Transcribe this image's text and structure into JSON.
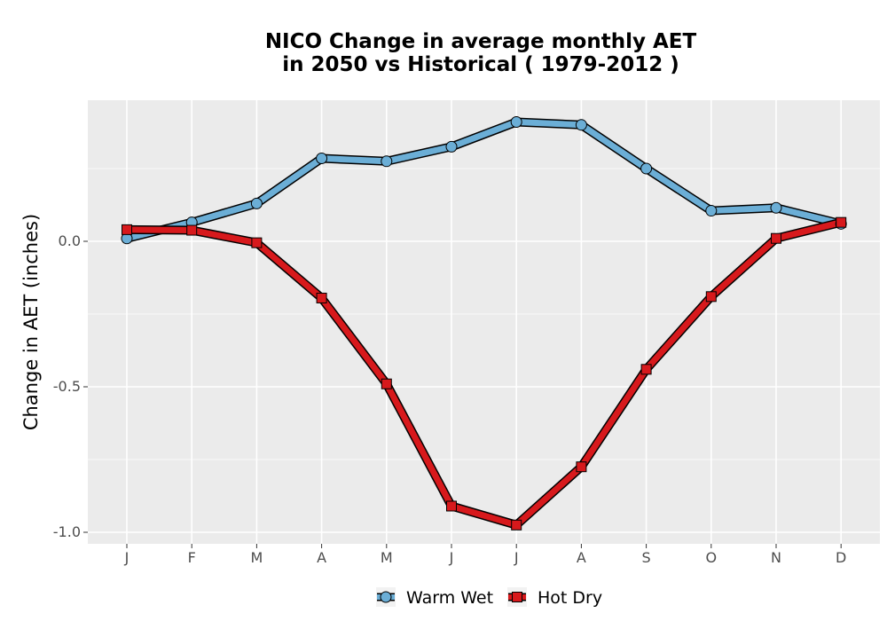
{
  "chart_data": {
    "type": "line",
    "title_line1": "NICO  Change in average monthly AET",
    "title_line2": "in 2050 vs Historical ( 1979-2012 )",
    "xlabel": "",
    "ylabel": "Change in AET (inches)",
    "categories": [
      "J",
      "F",
      "M",
      "A",
      "M",
      "J",
      "J",
      "A",
      "S",
      "O",
      "N",
      "D"
    ],
    "y_ticks": [
      0.0,
      -0.5,
      -1.0
    ],
    "y_tick_labels": [
      "0.0",
      "-0.5",
      "-1.0"
    ],
    "ylim": [
      -1.04,
      0.43
    ],
    "grid": true,
    "legend_position": "bottom",
    "series": [
      {
        "name": "Warm Wet",
        "color": "#6baed6",
        "marker": "circle",
        "values": [
          0.01,
          0.065,
          0.13,
          0.285,
          0.275,
          0.325,
          0.41,
          0.4,
          0.25,
          0.105,
          0.115,
          0.06
        ]
      },
      {
        "name": "Hot Dry",
        "color": "#d7191c",
        "marker": "square",
        "values": [
          0.04,
          0.038,
          -0.005,
          -0.195,
          -0.49,
          -0.91,
          -0.975,
          -0.775,
          -0.44,
          -0.19,
          0.01,
          0.065
        ]
      }
    ]
  }
}
